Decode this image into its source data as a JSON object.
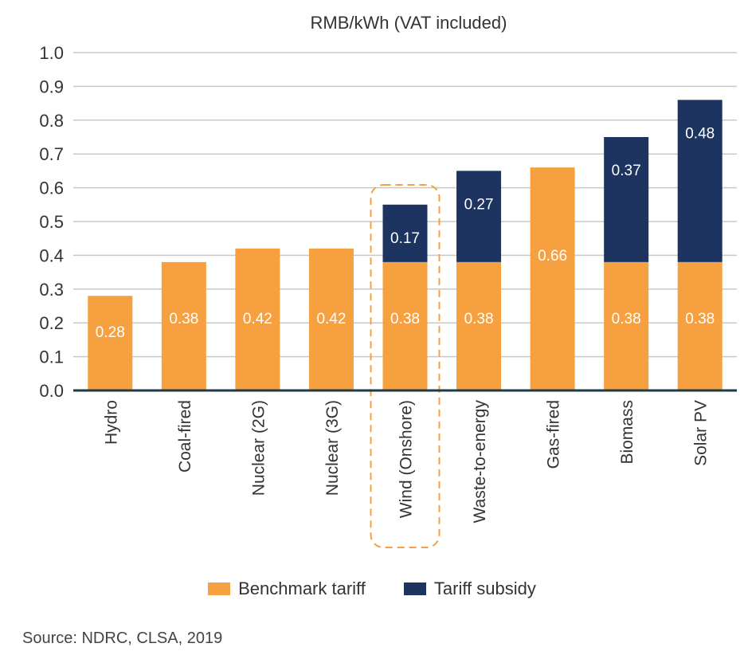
{
  "colors": {
    "benchmark": "#F7A03F",
    "subsidy": "#1D3461",
    "highlight": "#F7A03F",
    "grid": "#C8C8C8",
    "axis": "#1F3B47"
  },
  "chart_data": {
    "type": "bar",
    "stacked": true,
    "ylabel": "RMB/kWh (VAT included)",
    "ylim": [
      0,
      1.0
    ],
    "yticks": [
      "0.0",
      "0.1",
      "0.2",
      "0.3",
      "0.4",
      "0.5",
      "0.6",
      "0.7",
      "0.8",
      "0.9",
      "1.0"
    ],
    "categories": [
      "Hydro",
      "Coal-fired",
      "Nuclear (2G)",
      "Nuclear (3G)",
      "Wind (Onshore)",
      "Waste-to-energy",
      "Gas-fired",
      "Biomass",
      "Solar PV"
    ],
    "highlighted_category": "Wind (Onshore)",
    "series": [
      {
        "name": "Benchmark tariff",
        "values": [
          0.28,
          0.38,
          0.42,
          0.42,
          0.38,
          0.38,
          0.66,
          0.38,
          0.38
        ],
        "labels": [
          "0.28",
          "0.38",
          "0.42",
          "0.42",
          "0.38",
          "0.38",
          "0.66",
          "0.38",
          "0.38"
        ]
      },
      {
        "name": "Tariff subsidy",
        "values": [
          0,
          0,
          0,
          0,
          0.17,
          0.27,
          0,
          0.37,
          0.48
        ],
        "labels": [
          "",
          "",
          "",
          "",
          "0.17",
          "0.27",
          "",
          "0.37",
          "0.48"
        ]
      }
    ],
    "legend_position": "bottom",
    "grid": true
  },
  "legend": {
    "benchmark_label": "Benchmark tariff",
    "subsidy_label": "Tariff subsidy"
  },
  "source": "Source: NDRC, CLSA, 2019"
}
